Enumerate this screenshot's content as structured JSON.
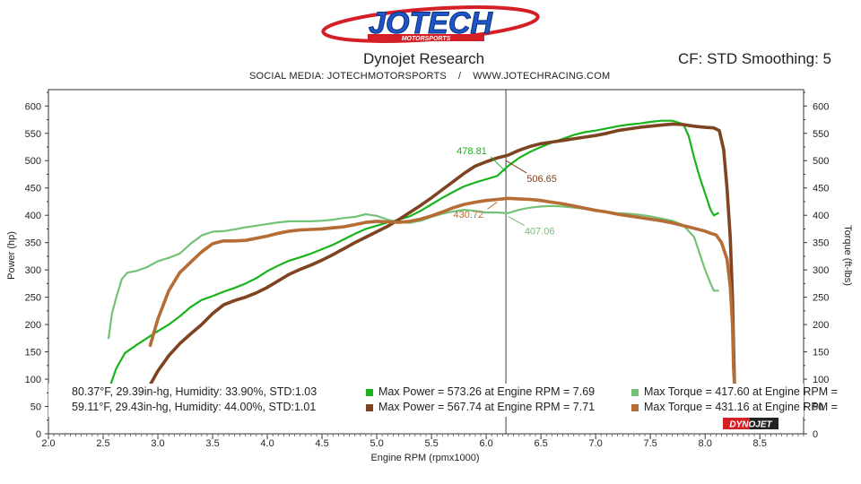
{
  "header": {
    "logo_text": "JOTECH",
    "logo_subtext": "MOTORSPORTS",
    "title": "Dynojet Research",
    "cf_text": "CF: STD Smoothing: 5",
    "subtitle": "SOCIAL MEDIA: JOTECHMOTORSPORTS    /    WWW.JOTECHRACING.COM"
  },
  "legend": {
    "run1": {
      "conditions": "80.37°F, 29.39in-hg, Humidity: 33.90%, STD:1.03",
      "max_power": "Max Power = 573.26 at Engine RPM = 7.69",
      "max_torque": "Max Torque = 417.60 at Engine RPM =",
      "power_color": "#19b31c",
      "torque_color": "#74c276"
    },
    "run2": {
      "conditions": "59.11°F, 29.43in-hg, Humidity: 44.00%, STD:1.01",
      "max_power": "Max Power = 567.74 at Engine RPM = 7.71",
      "max_torque": "Max Torque = 431.16 at Engine RPM =",
      "power_color": "#7e4320",
      "torque_color": "#b56c35"
    }
  },
  "footer": {
    "dynojet_logo": "DYNOJET"
  },
  "chart_data": {
    "type": "line",
    "xlabel": "Engine RPM (rpmx1000)",
    "ylabel_left": "Power (hp)",
    "ylabel_right": "Torque (ft-lbs)",
    "xlim": [
      2.0,
      8.9
    ],
    "ylim": [
      0,
      630
    ],
    "x_ticks": [
      "2.0",
      "2.5",
      "3.0",
      "3.5",
      "4.0",
      "4.5",
      "5.0",
      "5.5",
      "6.0",
      "6.5",
      "7.0",
      "7.5",
      "8.0",
      "8.5"
    ],
    "y_ticks": [
      "0",
      "50",
      "100",
      "150",
      "200",
      "250",
      "300",
      "350",
      "400",
      "450",
      "500",
      "550",
      "600"
    ],
    "cursor_x": 6.18,
    "grid": false,
    "series": [
      {
        "key": "power_run1",
        "color": "#19b31c",
        "width": 2.2,
        "points": [
          [
            2.55,
            80
          ],
          [
            2.62,
            120
          ],
          [
            2.7,
            148
          ],
          [
            2.8,
            162
          ],
          [
            2.9,
            175
          ],
          [
            3.0,
            188
          ],
          [
            3.1,
            200
          ],
          [
            3.2,
            215
          ],
          [
            3.3,
            232
          ],
          [
            3.4,
            245
          ],
          [
            3.5,
            252
          ],
          [
            3.6,
            260
          ],
          [
            3.7,
            267
          ],
          [
            3.8,
            275
          ],
          [
            3.9,
            285
          ],
          [
            4.0,
            298
          ],
          [
            4.1,
            308
          ],
          [
            4.2,
            317
          ],
          [
            4.3,
            323
          ],
          [
            4.4,
            330
          ],
          [
            4.5,
            338
          ],
          [
            4.6,
            346
          ],
          [
            4.7,
            356
          ],
          [
            4.8,
            366
          ],
          [
            4.9,
            375
          ],
          [
            5.0,
            381
          ],
          [
            5.1,
            387
          ],
          [
            5.2,
            392
          ],
          [
            5.3,
            398
          ],
          [
            5.4,
            408
          ],
          [
            5.5,
            420
          ],
          [
            5.6,
            432
          ],
          [
            5.7,
            443
          ],
          [
            5.8,
            453
          ],
          [
            5.9,
            460
          ],
          [
            6.0,
            466
          ],
          [
            6.1,
            472
          ],
          [
            6.2,
            490
          ],
          [
            6.3,
            505
          ],
          [
            6.4,
            516
          ],
          [
            6.5,
            525
          ],
          [
            6.6,
            533
          ],
          [
            6.7,
            540
          ],
          [
            6.8,
            547
          ],
          [
            6.9,
            552
          ],
          [
            7.0,
            555
          ],
          [
            7.1,
            559
          ],
          [
            7.2,
            563
          ],
          [
            7.3,
            566
          ],
          [
            7.4,
            568
          ],
          [
            7.5,
            571
          ],
          [
            7.6,
            573
          ],
          [
            7.7,
            573
          ],
          [
            7.8,
            567
          ],
          [
            7.85,
            545
          ],
          [
            7.9,
            505
          ],
          [
            7.95,
            470
          ],
          [
            8.0,
            440
          ],
          [
            8.05,
            410
          ],
          [
            8.08,
            400
          ],
          [
            8.12,
            404
          ]
        ]
      },
      {
        "key": "power_run2",
        "color": "#7e4320",
        "width": 3.6,
        "points": [
          [
            2.93,
            90
          ],
          [
            3.0,
            115
          ],
          [
            3.1,
            143
          ],
          [
            3.2,
            165
          ],
          [
            3.3,
            183
          ],
          [
            3.4,
            200
          ],
          [
            3.5,
            220
          ],
          [
            3.6,
            236
          ],
          [
            3.7,
            244
          ],
          [
            3.8,
            250
          ],
          [
            3.9,
            258
          ],
          [
            4.0,
            268
          ],
          [
            4.1,
            280
          ],
          [
            4.2,
            292
          ],
          [
            4.3,
            301
          ],
          [
            4.4,
            309
          ],
          [
            4.5,
            318
          ],
          [
            4.6,
            328
          ],
          [
            4.7,
            339
          ],
          [
            4.8,
            350
          ],
          [
            4.9,
            360
          ],
          [
            5.0,
            370
          ],
          [
            5.1,
            380
          ],
          [
            5.2,
            392
          ],
          [
            5.3,
            405
          ],
          [
            5.4,
            418
          ],
          [
            5.5,
            432
          ],
          [
            5.6,
            447
          ],
          [
            5.7,
            462
          ],
          [
            5.8,
            477
          ],
          [
            5.9,
            490
          ],
          [
            6.0,
            498
          ],
          [
            6.1,
            505
          ],
          [
            6.2,
            510
          ],
          [
            6.3,
            519
          ],
          [
            6.4,
            526
          ],
          [
            6.5,
            531
          ],
          [
            6.6,
            534
          ],
          [
            6.7,
            537
          ],
          [
            6.8,
            540
          ],
          [
            6.9,
            543
          ],
          [
            7.0,
            546
          ],
          [
            7.1,
            550
          ],
          [
            7.2,
            555
          ],
          [
            7.3,
            558
          ],
          [
            7.4,
            561
          ],
          [
            7.5,
            563
          ],
          [
            7.6,
            565
          ],
          [
            7.7,
            567
          ],
          [
            7.8,
            566
          ],
          [
            7.9,
            563
          ],
          [
            8.0,
            561
          ],
          [
            8.08,
            560
          ],
          [
            8.13,
            555
          ],
          [
            8.17,
            520
          ],
          [
            8.2,
            450
          ],
          [
            8.23,
            360
          ],
          [
            8.25,
            250
          ],
          [
            8.26,
            160
          ],
          [
            8.27,
            80
          ]
        ]
      },
      {
        "key": "torque_run1",
        "color": "#74c276",
        "width": 2.2,
        "points": [
          [
            2.55,
            175
          ],
          [
            2.58,
            220
          ],
          [
            2.62,
            250
          ],
          [
            2.67,
            283
          ],
          [
            2.72,
            295
          ],
          [
            2.8,
            298
          ],
          [
            2.9,
            305
          ],
          [
            3.0,
            316
          ],
          [
            3.1,
            322
          ],
          [
            3.2,
            330
          ],
          [
            3.3,
            348
          ],
          [
            3.4,
            363
          ],
          [
            3.5,
            370
          ],
          [
            3.6,
            371
          ],
          [
            3.7,
            374
          ],
          [
            3.8,
            378
          ],
          [
            3.9,
            381
          ],
          [
            4.0,
            384
          ],
          [
            4.1,
            387
          ],
          [
            4.2,
            389
          ],
          [
            4.3,
            389
          ],
          [
            4.4,
            389
          ],
          [
            4.5,
            390
          ],
          [
            4.6,
            392
          ],
          [
            4.7,
            395
          ],
          [
            4.8,
            397
          ],
          [
            4.9,
            402
          ],
          [
            5.0,
            399
          ],
          [
            5.1,
            392
          ],
          [
            5.2,
            387
          ],
          [
            5.3,
            386
          ],
          [
            5.4,
            390
          ],
          [
            5.5,
            397
          ],
          [
            5.6,
            403
          ],
          [
            5.7,
            407
          ],
          [
            5.8,
            410
          ],
          [
            5.9,
            408
          ],
          [
            6.0,
            405
          ],
          [
            6.1,
            405
          ],
          [
            6.2,
            404
          ],
          [
            6.3,
            410
          ],
          [
            6.4,
            414
          ],
          [
            6.5,
            416
          ],
          [
            6.6,
            417
          ],
          [
            6.7,
            416
          ],
          [
            6.8,
            414
          ],
          [
            6.9,
            412
          ],
          [
            7.0,
            409
          ],
          [
            7.1,
            406
          ],
          [
            7.2,
            404
          ],
          [
            7.3,
            403
          ],
          [
            7.4,
            401
          ],
          [
            7.5,
            398
          ],
          [
            7.6,
            394
          ],
          [
            7.7,
            390
          ],
          [
            7.8,
            382
          ],
          [
            7.9,
            360
          ],
          [
            7.95,
            330
          ],
          [
            8.0,
            300
          ],
          [
            8.05,
            275
          ],
          [
            8.08,
            262
          ],
          [
            8.12,
            262
          ]
        ]
      },
      {
        "key": "torque_run2",
        "color": "#b56c35",
        "width": 3.6,
        "points": [
          [
            2.93,
            162
          ],
          [
            3.0,
            210
          ],
          [
            3.1,
            262
          ],
          [
            3.2,
            295
          ],
          [
            3.3,
            314
          ],
          [
            3.4,
            333
          ],
          [
            3.5,
            348
          ],
          [
            3.6,
            353
          ],
          [
            3.7,
            353
          ],
          [
            3.8,
            354
          ],
          [
            3.9,
            358
          ],
          [
            4.0,
            362
          ],
          [
            4.1,
            367
          ],
          [
            4.2,
            371
          ],
          [
            4.3,
            373
          ],
          [
            4.4,
            374
          ],
          [
            4.5,
            375
          ],
          [
            4.6,
            377
          ],
          [
            4.7,
            379
          ],
          [
            4.8,
            383
          ],
          [
            4.9,
            387
          ],
          [
            5.0,
            389
          ],
          [
            5.1,
            388
          ],
          [
            5.2,
            387
          ],
          [
            5.3,
            389
          ],
          [
            5.4,
            393
          ],
          [
            5.5,
            399
          ],
          [
            5.6,
            406
          ],
          [
            5.7,
            414
          ],
          [
            5.8,
            420
          ],
          [
            5.9,
            424
          ],
          [
            6.0,
            427
          ],
          [
            6.1,
            429
          ],
          [
            6.2,
            431
          ],
          [
            6.3,
            430
          ],
          [
            6.4,
            429
          ],
          [
            6.5,
            427
          ],
          [
            6.6,
            424
          ],
          [
            6.7,
            421
          ],
          [
            6.8,
            417
          ],
          [
            6.9,
            413
          ],
          [
            7.0,
            409
          ],
          [
            7.1,
            406
          ],
          [
            7.2,
            402
          ],
          [
            7.3,
            399
          ],
          [
            7.4,
            396
          ],
          [
            7.5,
            393
          ],
          [
            7.6,
            390
          ],
          [
            7.7,
            386
          ],
          [
            7.8,
            381
          ],
          [
            7.9,
            376
          ],
          [
            8.0,
            371
          ],
          [
            8.05,
            367
          ],
          [
            8.1,
            364
          ],
          [
            8.15,
            350
          ],
          [
            8.2,
            320
          ],
          [
            8.23,
            270
          ],
          [
            8.25,
            200
          ],
          [
            8.26,
            120
          ],
          [
            8.27,
            85
          ]
        ]
      }
    ],
    "annotations": [
      {
        "text": "478.81",
        "x": 5.73,
        "y": 512,
        "color": "#19b31c",
        "ax": 6.18,
        "ay": 480
      },
      {
        "text": "506.65",
        "x": 6.37,
        "y": 461,
        "color": "#7e4320",
        "ax": 6.18,
        "ay": 500
      },
      {
        "text": "430.72",
        "x": 5.7,
        "y": 395,
        "color": "#b56c35",
        "ax": 6.1,
        "ay": 424
      },
      {
        "text": "407.06",
        "x": 6.35,
        "y": 365,
        "color": "#74c276",
        "ax": 6.2,
        "ay": 398
      }
    ]
  }
}
